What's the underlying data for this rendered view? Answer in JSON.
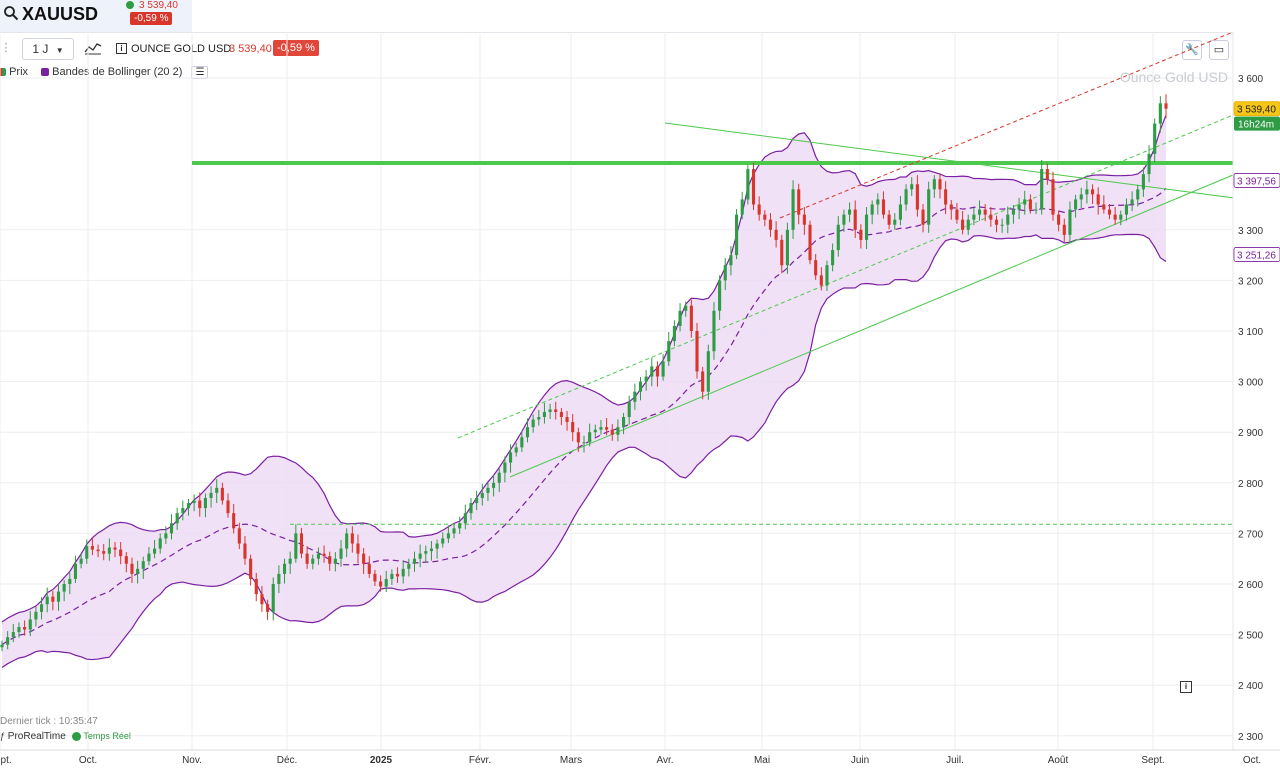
{
  "header": {
    "symbol": "XAUUSD",
    "price": "3 539,40",
    "change": "-0,59 %"
  },
  "toolbar": {
    "period": "1 J",
    "instrument_name": "OUNCE GOLD USD",
    "instrument_price": "3 539,40",
    "instrument_change": "-0,59 %"
  },
  "legend": {
    "price_label": "Prix",
    "bollinger_label": "Bandes de Bollinger (20 2)"
  },
  "footer": {
    "last_tick": "Dernier tick : 10:35:47",
    "provider": "ProRealTime",
    "realtime": "Temps Réel"
  },
  "colors": {
    "up": "#2e9b45",
    "down": "#d9362b",
    "bollinger": "#7b1fa2",
    "bollinger_fill": "#ecd9f5",
    "support": "#4cc94c"
  },
  "chart_data": {
    "type": "candlestick",
    "watermark": "Ounce Gold USD",
    "x_labels": [
      "Sept.",
      "Oct.",
      "Nov.",
      "Déc.",
      "2025",
      "Févr.",
      "Mars",
      "Avr.",
      "Mai",
      "Juin",
      "Juil.",
      "Août",
      "Sept.",
      "Oct."
    ],
    "y_ticks": [
      2300,
      2400,
      2500,
      2600,
      2700,
      2800,
      2900,
      3000,
      3100,
      3200,
      3300,
      3600
    ],
    "y_range": [
      2280,
      3640
    ],
    "price_tags": [
      {
        "value": 3539.4,
        "label": "3 539,40",
        "sub": "16h24m",
        "kind": "last"
      },
      {
        "value": 3397.56,
        "label": "3 397,56",
        "kind": "upper"
      },
      {
        "value": 3251.26,
        "label": "3 251,26",
        "kind": "lower"
      }
    ],
    "horizontal_levels": [
      {
        "value": 3432,
        "style": "thick-green"
      },
      {
        "value": 2718,
        "style": "dashed-green"
      }
    ],
    "closes": [
      2480,
      2495,
      2505,
      2515,
      2510,
      2530,
      2545,
      2560,
      2575,
      2565,
      2585,
      2600,
      2610,
      2640,
      2650,
      2675,
      2668,
      2665,
      2660,
      2672,
      2668,
      2655,
      2640,
      2620,
      2630,
      2645,
      2660,
      2670,
      2690,
      2700,
      2720,
      2740,
      2750,
      2760,
      2765,
      2750,
      2770,
      2780,
      2790,
      2765,
      2740,
      2710,
      2680,
      2650,
      2610,
      2580,
      2560,
      2545,
      2600,
      2620,
      2640,
      2650,
      2700,
      2660,
      2640,
      2650,
      2660,
      2655,
      2640,
      2650,
      2670,
      2700,
      2680,
      2660,
      2640,
      2620,
      2605,
      2595,
      2610,
      2620,
      2615,
      2630,
      2640,
      2650,
      2660,
      2665,
      2670,
      2680,
      2690,
      2700,
      2710,
      2720,
      2740,
      2760,
      2770,
      2780,
      2790,
      2800,
      2820,
      2840,
      2860,
      2870,
      2890,
      2910,
      2925,
      2930,
      2940,
      2945,
      2940,
      2930,
      2920,
      2900,
      2880,
      2880,
      2900,
      2905,
      2910,
      2905,
      2895,
      2910,
      2930,
      2960,
      2980,
      3000,
      3010,
      3030,
      3010,
      3040,
      3080,
      3110,
      3140,
      3150,
      3100,
      3020,
      2980,
      3060,
      3140,
      3200,
      3230,
      3250,
      3330,
      3360,
      3420,
      3350,
      3330,
      3320,
      3300,
      3280,
      3230,
      3300,
      3380,
      3330,
      3310,
      3240,
      3210,
      3190,
      3230,
      3260,
      3310,
      3330,
      3340,
      3300,
      3280,
      3330,
      3350,
      3360,
      3330,
      3310,
      3320,
      3350,
      3380,
      3390,
      3340,
      3310,
      3380,
      3400,
      3380,
      3350,
      3340,
      3320,
      3300,
      3320,
      3330,
      3340,
      3330,
      3320,
      3310,
      3310,
      3330,
      3340,
      3350,
      3360,
      3340,
      3340,
      3420,
      3400,
      3330,
      3310,
      3290,
      3340,
      3360,
      3370,
      3380,
      3370,
      3350,
      3340,
      3330,
      3320,
      3330,
      3350,
      3360,
      3380,
      3410,
      3450,
      3510,
      3550,
      3539.4
    ]
  }
}
